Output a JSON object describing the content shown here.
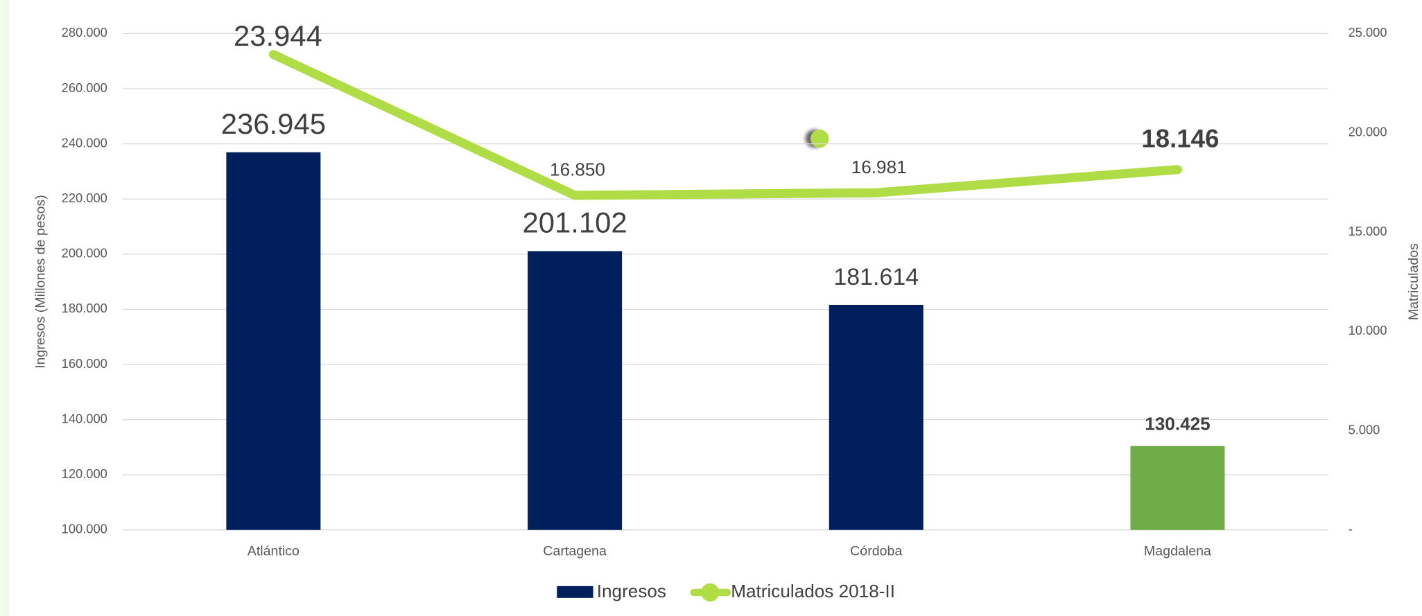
{
  "chart_data": {
    "type": "bar_line",
    "y_label": "Ingresos (Millones de pesos)",
    "y2_label": "Matriculados",
    "categories": [
      "Atlántico",
      "Cartagena",
      "Córdoba",
      "Magdalena"
    ],
    "series": [
      {
        "name": "Ingresos",
        "type": "bar",
        "color": "#001f5c",
        "colors": [
          "#001f5c",
          "#001f5c",
          "#001f5c",
          "#70ad47"
        ],
        "values": [
          236945,
          201102,
          181614,
          130425
        ],
        "value_labels": [
          "236.945",
          "201.102",
          "181.614",
          "130.425"
        ]
      },
      {
        "name": "Matriculados 2018-II",
        "type": "line",
        "axis": "y2",
        "color": "#b0dd45",
        "values": [
          23944,
          16850,
          16981,
          18146
        ],
        "value_labels": [
          "23.944",
          "16.850",
          "16.981",
          "18.146"
        ]
      }
    ],
    "ylim": [
      100000,
      280000
    ],
    "yticks": [
      {
        "value": 100000,
        "label": "100.000"
      },
      {
        "value": 120000,
        "label": "120.000"
      },
      {
        "value": 140000,
        "label": "140.000"
      },
      {
        "value": 160000,
        "label": "160.000"
      },
      {
        "value": 180000,
        "label": "180.000"
      },
      {
        "value": 200000,
        "label": "200.000"
      },
      {
        "value": 220000,
        "label": "220.000"
      },
      {
        "value": 240000,
        "label": "240.000"
      },
      {
        "value": 260000,
        "label": "260.000"
      },
      {
        "value": 280000,
        "label": "280.000"
      }
    ],
    "y2lim": [
      0,
      25000
    ],
    "y2ticks": [
      {
        "value": 0,
        "label": "-"
      },
      {
        "value": 5000,
        "label": "5.000"
      },
      {
        "value": 10000,
        "label": "10.000"
      },
      {
        "value": 15000,
        "label": "15.000"
      },
      {
        "value": 20000,
        "label": "20.000"
      },
      {
        "value": 25000,
        "label": "25.000"
      }
    ],
    "grid": true,
    "legend": "bottom"
  }
}
